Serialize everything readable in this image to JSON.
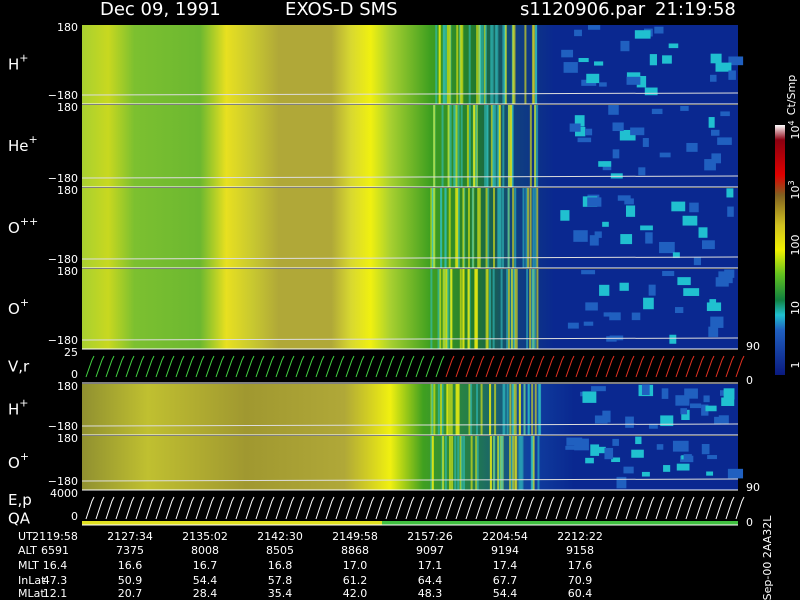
{
  "header": {
    "date": "Dec 09, 1991",
    "instrument": "EXOS-D SMS",
    "file": "s1120906.par",
    "time": "21:19:58"
  },
  "panels": [
    {
      "label": "H",
      "sup": "+",
      "ticks": [
        "180",
        "−180"
      ]
    },
    {
      "label": "He",
      "sup": "+",
      "ticks": [
        "180",
        "−180"
      ]
    },
    {
      "label": "O",
      "sup": "++",
      "ticks": [
        "180",
        "−180"
      ]
    },
    {
      "label": "O",
      "sup": "+",
      "ticks": [
        "180",
        "−180"
      ],
      "right": "90"
    },
    {
      "label": "V,r",
      "ticks": [
        "25",
        "0"
      ],
      "right": "0"
    },
    {
      "label": "H",
      "sup": "+",
      "ticks": [
        "180",
        "−180"
      ]
    },
    {
      "label": "O",
      "sup": "+",
      "ticks": [
        "180",
        "−180"
      ],
      "right": "90"
    },
    {
      "label": "E,p",
      "label2": "QA",
      "ticks": [
        "4000",
        "0"
      ],
      "right": "0"
    }
  ],
  "colorbar": {
    "unit": "Ct/Smp",
    "ticks": [
      {
        "base": "10",
        "exp": "4"
      },
      {
        "base": "10",
        "exp": "3"
      },
      "100",
      "10",
      "1"
    ]
  },
  "table": {
    "rows": [
      [
        "UT",
        "2119:58",
        "2127:34",
        "2135:02",
        "2142:30",
        "2149:58",
        "2157:26",
        "2204:54",
        "2212:22"
      ],
      [
        "ALT",
        "6591",
        "7375",
        "8008",
        "8505",
        "8868",
        "9097",
        "9194",
        "9158"
      ],
      [
        "MLT",
        "16.4",
        "16.6",
        "16.7",
        "16.8",
        "17.0",
        "17.1",
        "17.4",
        "17.6"
      ],
      [
        "InLat",
        "47.3",
        "50.9",
        "54.4",
        "57.8",
        "61.2",
        "64.4",
        "67.7",
        "70.9"
      ],
      [
        "MLat",
        "12.1",
        "20.7",
        "28.4",
        "35.4",
        "42.0",
        "48.3",
        "54.4",
        "60.4"
      ]
    ]
  },
  "footer_code": "Sep-00 2AA32L"
}
